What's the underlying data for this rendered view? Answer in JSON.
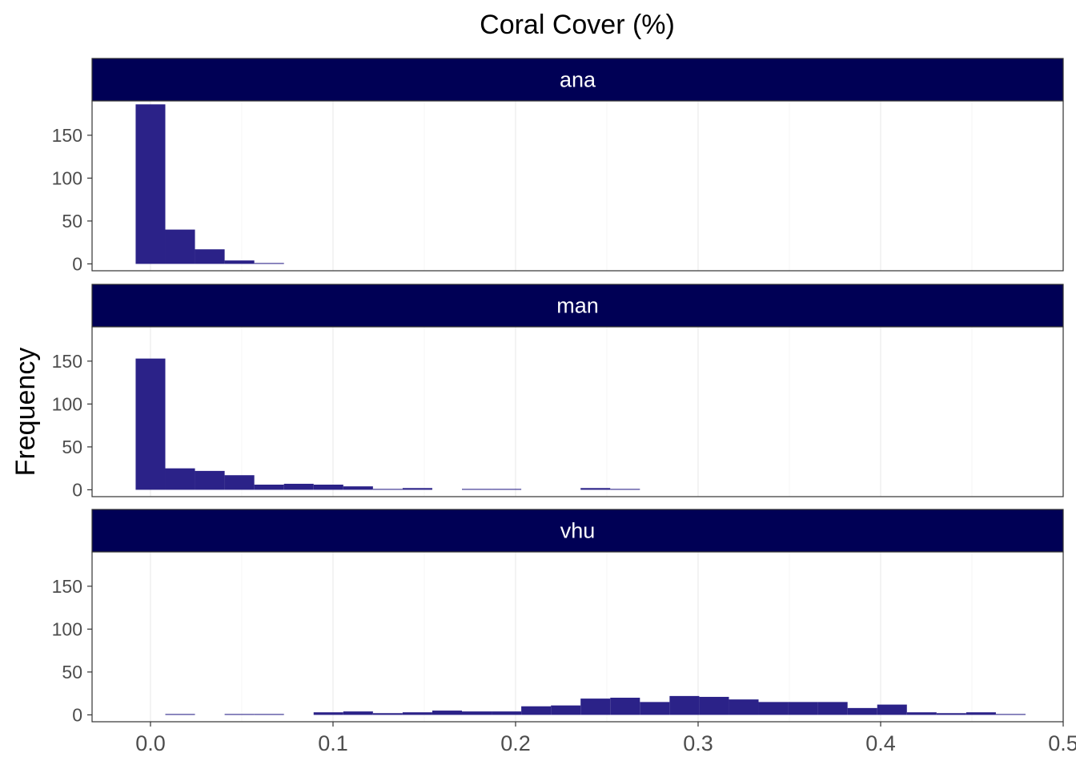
{
  "chart_data": {
    "type": "bar",
    "title": "Coral Cover (%)",
    "xlabel": "",
    "ylabel": "Frequency",
    "xlim": [
      -0.032,
      0.5
    ],
    "ylim": [
      -8,
      190
    ],
    "x_ticks": [
      0.0,
      0.1,
      0.2,
      0.3,
      0.4,
      0.5
    ],
    "x_tick_labels": [
      "0.0",
      "0.1",
      "0.2",
      "0.3",
      "0.4",
      "0.5"
    ],
    "y_ticks": [
      0,
      50,
      100,
      150
    ],
    "y_tick_labels": [
      "0",
      "50",
      "100",
      "150"
    ],
    "grid": true,
    "bin_width": 0.01625,
    "bin_starts": [
      -0.008125,
      0.008125,
      0.024375,
      0.040625,
      0.056875,
      0.073125,
      0.089375,
      0.105625,
      0.121875,
      0.138125,
      0.154375,
      0.170625,
      0.186875,
      0.203125,
      0.219375,
      0.235625,
      0.251875,
      0.268125,
      0.284375,
      0.300625,
      0.316875,
      0.333125,
      0.349375,
      0.365625,
      0.381875,
      0.398125,
      0.414375,
      0.430625,
      0.446875,
      0.463125
    ],
    "bar_color": "#2b2288",
    "strip_color": "#000055",
    "series": [
      {
        "name": "ana",
        "values": [
          186,
          40,
          17,
          4,
          1,
          0,
          0,
          0,
          0,
          0,
          0,
          0,
          0,
          0,
          0,
          0,
          0,
          0,
          0,
          0,
          0,
          0,
          0,
          0,
          0,
          0,
          0,
          0,
          0,
          0
        ]
      },
      {
        "name": "man",
        "values": [
          153,
          25,
          22,
          17,
          6,
          7,
          6,
          4,
          1,
          2,
          0,
          1,
          1,
          0,
          0,
          2,
          1,
          0,
          0,
          0,
          0,
          0,
          0,
          0,
          0,
          0,
          0,
          0,
          0,
          0
        ]
      },
      {
        "name": "vhu",
        "values": [
          0,
          1,
          0,
          1,
          1,
          0,
          3,
          4,
          2,
          3,
          5,
          4,
          4,
          10,
          11,
          19,
          20,
          15,
          22,
          21,
          18,
          15,
          15,
          15,
          8,
          12,
          3,
          2,
          3,
          1
        ]
      }
    ]
  }
}
